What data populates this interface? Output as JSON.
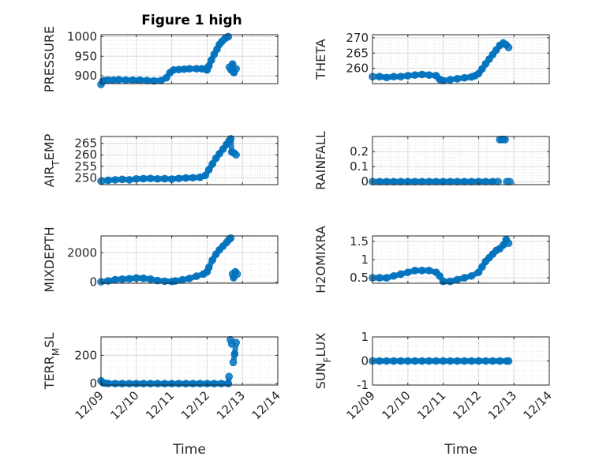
{
  "figure_title": "Figure 1 high",
  "colors": {
    "marker": "#0072BD",
    "axis": "#262626",
    "grid": "#dcdcdc"
  },
  "chart_data": [
    {
      "type": "scatter",
      "title": "Figure 1 high",
      "ylabel": "PRESSURE",
      "xlabel": "",
      "x_ticks": [
        "12/09",
        "12/10",
        "12/11",
        "12/12",
        "12/13",
        "12/14"
      ],
      "y_ticks": [
        900,
        950,
        1000
      ],
      "ylim": [
        880,
        1005
      ],
      "grid": true,
      "points": [
        [
          0.0,
          878
        ],
        [
          0.05,
          886
        ],
        [
          0.1,
          888
        ],
        [
          0.2,
          889
        ],
        [
          0.35,
          889
        ],
        [
          0.5,
          890
        ],
        [
          0.7,
          889
        ],
        [
          0.9,
          889
        ],
        [
          1.1,
          889
        ],
        [
          1.3,
          888
        ],
        [
          1.5,
          887
        ],
        [
          1.7,
          888
        ],
        [
          1.85,
          895
        ],
        [
          1.95,
          908
        ],
        [
          2.05,
          915
        ],
        [
          2.2,
          916
        ],
        [
          2.35,
          917
        ],
        [
          2.5,
          918
        ],
        [
          2.7,
          918
        ],
        [
          2.85,
          918
        ],
        [
          2.95,
          917
        ],
        [
          3.0,
          915
        ],
        [
          3.05,
          925
        ],
        [
          3.12,
          940
        ],
        [
          3.2,
          955
        ],
        [
          3.28,
          968
        ],
        [
          3.35,
          980
        ],
        [
          3.42,
          988
        ],
        [
          3.5,
          995
        ],
        [
          3.55,
          998
        ],
        [
          3.6,
          1000
        ],
        [
          3.63,
          922
        ],
        [
          3.68,
          915
        ],
        [
          3.72,
          930
        ],
        [
          3.76,
          908
        ],
        [
          3.82,
          918
        ]
      ]
    },
    {
      "type": "scatter",
      "ylabel": "THETA",
      "xlabel": "",
      "x_ticks": [
        "12/09",
        "12/10",
        "12/11",
        "12/12",
        "12/13",
        "12/14"
      ],
      "y_ticks": [
        260,
        265,
        270
      ],
      "ylim": [
        255,
        271
      ],
      "grid": true,
      "points": [
        [
          0.0,
          257.3
        ],
        [
          0.2,
          257.3
        ],
        [
          0.4,
          257.0
        ],
        [
          0.6,
          257.3
        ],
        [
          0.8,
          257.3
        ],
        [
          1.0,
          257.6
        ],
        [
          1.2,
          257.8
        ],
        [
          1.4,
          258.0
        ],
        [
          1.6,
          257.8
        ],
        [
          1.8,
          257.6
        ],
        [
          1.9,
          256.4
        ],
        [
          2.0,
          256.0
        ],
        [
          2.2,
          256.3
        ],
        [
          2.4,
          256.6
        ],
        [
          2.6,
          256.9
        ],
        [
          2.8,
          257.2
        ],
        [
          2.9,
          257.6
        ],
        [
          3.0,
          258.3
        ],
        [
          3.1,
          259.8
        ],
        [
          3.2,
          261.5
        ],
        [
          3.3,
          263.0
        ],
        [
          3.4,
          264.5
        ],
        [
          3.5,
          266.0
        ],
        [
          3.6,
          267.5
        ],
        [
          3.7,
          268.3
        ],
        [
          3.78,
          267.7
        ],
        [
          3.85,
          266.8
        ]
      ]
    },
    {
      "type": "scatter",
      "ylabel": "AIR_TEMP",
      "xlabel": "",
      "x_ticks": [
        "12/09",
        "12/10",
        "12/11",
        "12/12",
        "12/13",
        "12/14"
      ],
      "y_ticks": [
        250,
        255,
        260,
        265
      ],
      "ylim": [
        247,
        268
      ],
      "grid": true,
      "points": [
        [
          0.0,
          248.5
        ],
        [
          0.2,
          248.9
        ],
        [
          0.4,
          249.1
        ],
        [
          0.6,
          249.3
        ],
        [
          0.8,
          249.1
        ],
        [
          1.0,
          249.5
        ],
        [
          1.2,
          249.6
        ],
        [
          1.4,
          249.7
        ],
        [
          1.6,
          249.5
        ],
        [
          1.8,
          249.6
        ],
        [
          2.0,
          249.4
        ],
        [
          2.2,
          249.7
        ],
        [
          2.4,
          249.9
        ],
        [
          2.6,
          250.0
        ],
        [
          2.8,
          250.2
        ],
        [
          2.95,
          251.0
        ],
        [
          3.05,
          253.5
        ],
        [
          3.15,
          256.0
        ],
        [
          3.25,
          258.5
        ],
        [
          3.35,
          260.5
        ],
        [
          3.45,
          262.5
        ],
        [
          3.55,
          264.5
        ],
        [
          3.62,
          266.0
        ],
        [
          3.67,
          267.0
        ],
        [
          3.7,
          261.2
        ],
        [
          3.76,
          260.8
        ],
        [
          3.82,
          260.0
        ]
      ]
    },
    {
      "type": "scatter",
      "ylabel": "RAINFALL",
      "xlabel": "",
      "x_ticks": [
        "12/09",
        "12/10",
        "12/11",
        "12/12",
        "12/13",
        "12/14"
      ],
      "y_ticks": [
        0,
        0.1,
        0.2
      ],
      "ylim": [
        -0.02,
        0.3
      ],
      "grid": true,
      "points": [
        [
          0.0,
          0
        ],
        [
          0.2,
          0
        ],
        [
          0.4,
          0
        ],
        [
          0.6,
          0
        ],
        [
          0.8,
          0
        ],
        [
          1.0,
          0
        ],
        [
          1.2,
          0
        ],
        [
          1.4,
          0
        ],
        [
          1.6,
          0
        ],
        [
          1.8,
          0
        ],
        [
          2.0,
          0
        ],
        [
          2.2,
          0
        ],
        [
          2.4,
          0
        ],
        [
          2.6,
          0
        ],
        [
          2.8,
          0
        ],
        [
          3.0,
          0
        ],
        [
          3.2,
          0
        ],
        [
          3.4,
          0
        ],
        [
          3.55,
          0
        ],
        [
          3.6,
          0.28
        ],
        [
          3.65,
          0.28
        ],
        [
          3.7,
          0.28
        ],
        [
          3.75,
          0.28
        ],
        [
          3.8,
          0
        ],
        [
          3.88,
          0
        ]
      ]
    },
    {
      "type": "scatter",
      "ylabel": "MIXDEPTH",
      "xlabel": "",
      "x_ticks": [
        "12/09",
        "12/10",
        "12/11",
        "12/12",
        "12/13",
        "12/14"
      ],
      "y_ticks": [
        0,
        2000
      ],
      "ylim": [
        -80,
        3150
      ],
      "grid": true,
      "points": [
        [
          0.0,
          20
        ],
        [
          0.2,
          80
        ],
        [
          0.4,
          160
        ],
        [
          0.6,
          200
        ],
        [
          0.8,
          230
        ],
        [
          1.0,
          280
        ],
        [
          1.2,
          260
        ],
        [
          1.4,
          200
        ],
        [
          1.6,
          100
        ],
        [
          1.8,
          60
        ],
        [
          2.0,
          40
        ],
        [
          2.1,
          80
        ],
        [
          2.3,
          150
        ],
        [
          2.5,
          250
        ],
        [
          2.7,
          400
        ],
        [
          2.9,
          550
        ],
        [
          3.0,
          700
        ],
        [
          3.05,
          1000
        ],
        [
          3.15,
          1500
        ],
        [
          3.25,
          1900
        ],
        [
          3.35,
          2200
        ],
        [
          3.45,
          2450
        ],
        [
          3.55,
          2700
        ],
        [
          3.62,
          2900
        ],
        [
          3.67,
          3000
        ],
        [
          3.72,
          550
        ],
        [
          3.75,
          300
        ],
        [
          3.8,
          700
        ],
        [
          3.85,
          550
        ]
      ]
    },
    {
      "type": "scatter",
      "ylabel": "H2OMIXRA",
      "xlabel": "",
      "x_ticks": [
        "12/09",
        "12/10",
        "12/11",
        "12/12",
        "12/13",
        "12/14"
      ],
      "y_ticks": [
        0.5,
        1,
        1.5
      ],
      "ylim": [
        0.35,
        1.65
      ],
      "grid": true,
      "points": [
        [
          0.0,
          0.5
        ],
        [
          0.2,
          0.5
        ],
        [
          0.4,
          0.5
        ],
        [
          0.6,
          0.55
        ],
        [
          0.8,
          0.6
        ],
        [
          1.0,
          0.65
        ],
        [
          1.2,
          0.7
        ],
        [
          1.4,
          0.7
        ],
        [
          1.6,
          0.7
        ],
        [
          1.8,
          0.65
        ],
        [
          1.9,
          0.55
        ],
        [
          2.0,
          0.4
        ],
        [
          2.2,
          0.4
        ],
        [
          2.4,
          0.45
        ],
        [
          2.6,
          0.5
        ],
        [
          2.8,
          0.55
        ],
        [
          3.0,
          0.65
        ],
        [
          3.1,
          0.8
        ],
        [
          3.2,
          0.95
        ],
        [
          3.3,
          1.05
        ],
        [
          3.4,
          1.15
        ],
        [
          3.5,
          1.25
        ],
        [
          3.6,
          1.3
        ],
        [
          3.7,
          1.4
        ],
        [
          3.78,
          1.55
        ],
        [
          3.85,
          1.45
        ]
      ]
    },
    {
      "type": "scatter",
      "ylabel": "TERR_MSL",
      "xlabel": "Time",
      "x_ticks": [
        "12/09",
        "12/10",
        "12/11",
        "12/12",
        "12/13",
        "12/14"
      ],
      "y_ticks": [
        0,
        200
      ],
      "ylim": [
        -10,
        330
      ],
      "grid": true,
      "points": [
        [
          0.0,
          20
        ],
        [
          0.05,
          8
        ],
        [
          0.1,
          3
        ],
        [
          0.2,
          1
        ],
        [
          0.4,
          0
        ],
        [
          0.6,
          0
        ],
        [
          0.8,
          0
        ],
        [
          1.0,
          0
        ],
        [
          1.2,
          0
        ],
        [
          1.4,
          0
        ],
        [
          1.6,
          0
        ],
        [
          1.8,
          0
        ],
        [
          2.0,
          0
        ],
        [
          2.2,
          0
        ],
        [
          2.4,
          0
        ],
        [
          2.6,
          0
        ],
        [
          2.8,
          0
        ],
        [
          3.0,
          0
        ],
        [
          3.2,
          0
        ],
        [
          3.4,
          0
        ],
        [
          3.6,
          0
        ],
        [
          3.62,
          50
        ],
        [
          3.66,
          310
        ],
        [
          3.7,
          280
        ],
        [
          3.74,
          150
        ],
        [
          3.78,
          210
        ],
        [
          3.82,
          290
        ]
      ]
    },
    {
      "type": "scatter",
      "ylabel": "SUN_FLUX",
      "xlabel": "Time",
      "x_ticks": [
        "12/09",
        "12/10",
        "12/11",
        "12/12",
        "12/13",
        "12/14"
      ],
      "y_ticks": [
        -1,
        0,
        1
      ],
      "ylim": [
        -1,
        1
      ],
      "grid": true,
      "points": [
        [
          0.0,
          0
        ],
        [
          0.2,
          0
        ],
        [
          0.4,
          0
        ],
        [
          0.6,
          0
        ],
        [
          0.8,
          0
        ],
        [
          1.0,
          0
        ],
        [
          1.2,
          0
        ],
        [
          1.4,
          0
        ],
        [
          1.6,
          0
        ],
        [
          1.8,
          0
        ],
        [
          2.0,
          0
        ],
        [
          2.2,
          0
        ],
        [
          2.4,
          0
        ],
        [
          2.6,
          0
        ],
        [
          2.8,
          0
        ],
        [
          3.0,
          0
        ],
        [
          3.2,
          0
        ],
        [
          3.4,
          0
        ],
        [
          3.6,
          0
        ],
        [
          3.8,
          0
        ],
        [
          3.85,
          0
        ]
      ]
    }
  ]
}
